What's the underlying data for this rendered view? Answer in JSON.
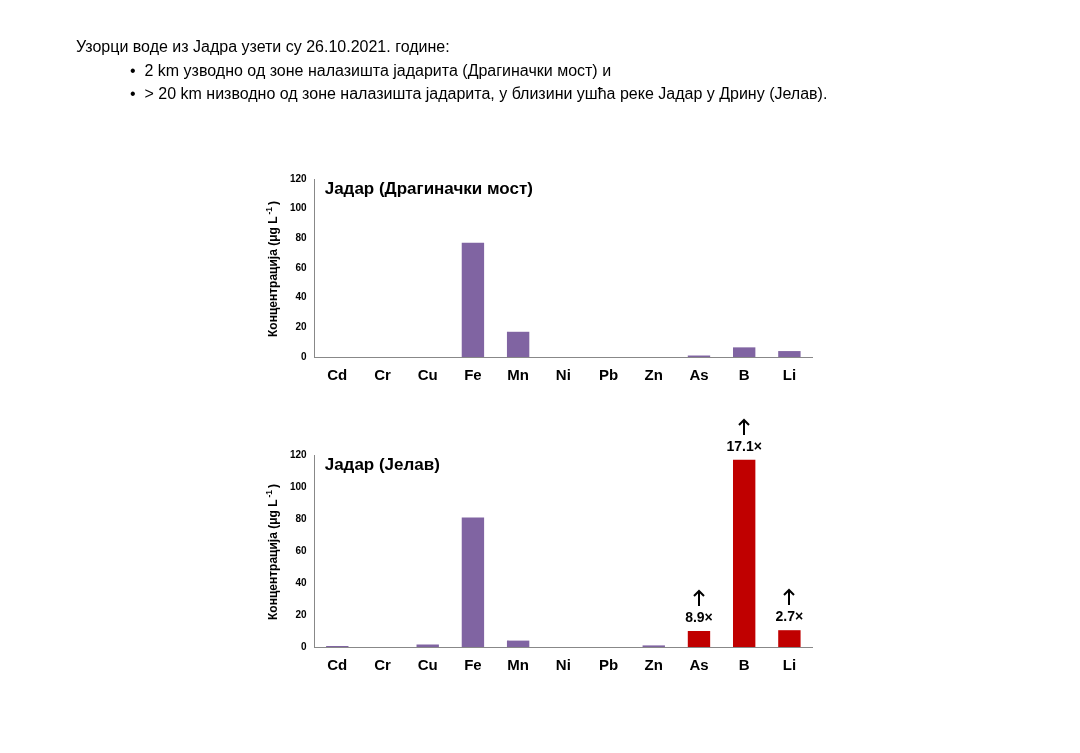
{
  "chart_data": [
    {
      "type": "other",
      "title": "Узорци воде из Јадра узети су 26.10.2021. године:",
      "annotations": [
        "•  2 km узводно од зоне налазишта јадарита (Драгиначки мост) и",
        "•  > 20 km низводно од зоне налазишта јадарита, у близини ушћа реке Јадар у Дрину (Јелав)."
      ]
    },
    {
      "type": "bar",
      "title": "Јадар (Драгиначки мост)",
      "ylabel": "Концентрација (μg L$^{-1}$)",
      "categories": [
        "Cd",
        "Cr",
        "Cu",
        "Fe",
        "Mn",
        "Ni",
        "Pb",
        "Zn",
        "As",
        "B",
        "Li"
      ],
      "values": [
        0,
        0,
        0,
        77,
        17,
        0,
        0,
        0,
        1,
        6.5,
        4
      ],
      "colors": [
        "#8064a2",
        "#8064a2",
        "#8064a2",
        "#8064a2",
        "#8064a2",
        "#8064a2",
        "#8064a2",
        "#8064a2",
        "#8064a2",
        "#8064a2",
        "#8064a2"
      ],
      "ylim": [
        0,
        120
      ],
      "yticks": [
        0,
        20,
        40,
        60,
        80,
        100,
        120
      ]
    },
    {
      "type": "bar",
      "title": "Јадар (Јелав)",
      "ylabel": "Концентрација (μg L$^{-1}$)",
      "categories": [
        "Cd",
        "Cr",
        "Cu",
        "Fe",
        "Mn",
        "Ni",
        "Pb",
        "Zn",
        "As",
        "B",
        "Li"
      ],
      "values": [
        0.7,
        0,
        1.5,
        81,
        4,
        0,
        0,
        1,
        10,
        117,
        10.5
      ],
      "colors": [
        "#8064a2",
        "#8064a2",
        "#8064a2",
        "#8064a2",
        "#8064a2",
        "#8064a2",
        "#8064a2",
        "#8064a2",
        "#c00000",
        "#c00000",
        "#c00000"
      ],
      "ylim": [
        0,
        120
      ],
      "yticks": [
        0,
        20,
        40,
        60,
        80,
        100,
        120
      ],
      "annotations": [
        {
          "text": "8.9×",
          "x": "As",
          "y": 10
        },
        {
          "text": "17.1×",
          "x": "B",
          "y": 117
        },
        {
          "text": "2.7×",
          "x": "Li",
          "y": 10.5
        }
      ]
    }
  ]
}
